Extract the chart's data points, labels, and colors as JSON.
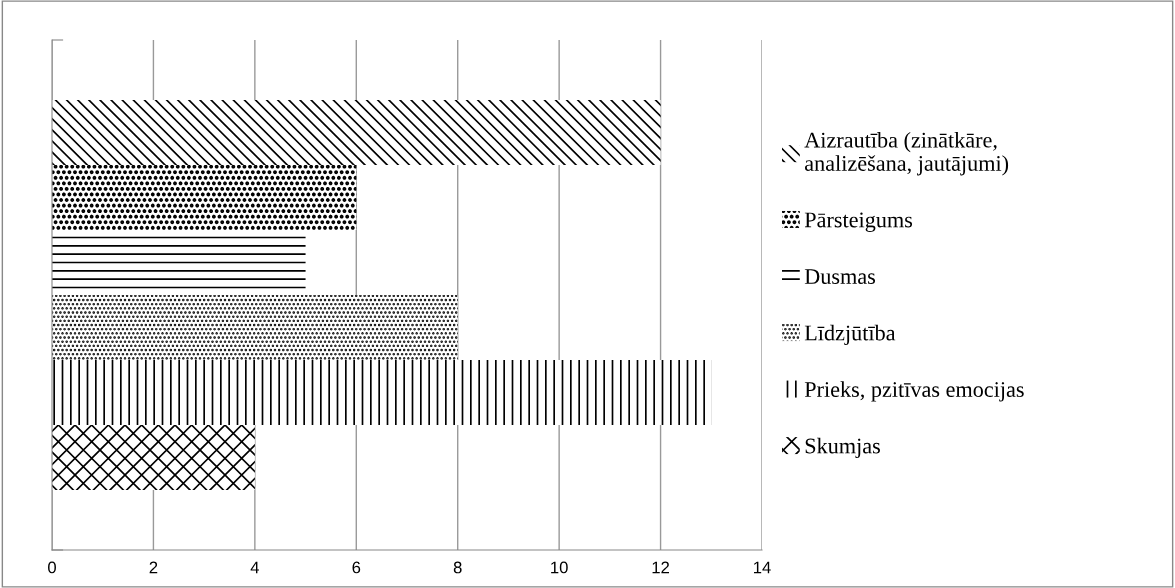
{
  "chart_data": {
    "type": "bar",
    "orientation": "horizontal",
    "categories": [
      null
    ],
    "series": [
      {
        "name": "Skumjas",
        "color": "#000000",
        "values": [
          4
        ]
      },
      {
        "name": "Prieks, pzitīvas emocijas",
        "color": "#000000",
        "values": [
          13
        ]
      },
      {
        "name": "Līdzjūtība",
        "color": "#000000",
        "values": [
          8
        ]
      },
      {
        "name": "Dusmas",
        "color": "#000000",
        "values": [
          5
        ]
      },
      {
        "name": "Pārsteigums",
        "color": "#000000",
        "values": [
          6
        ]
      },
      {
        "name": "Aizrautība (zinātkāre,\nanalizēšana, jautājumi)",
        "color": "#000000",
        "values": [
          12
        ]
      }
    ],
    "xlim": [
      0,
      14
    ],
    "xticks": [
      0,
      2,
      4,
      6,
      8,
      10,
      12,
      14
    ],
    "grid": "x",
    "legend": "right"
  }
}
